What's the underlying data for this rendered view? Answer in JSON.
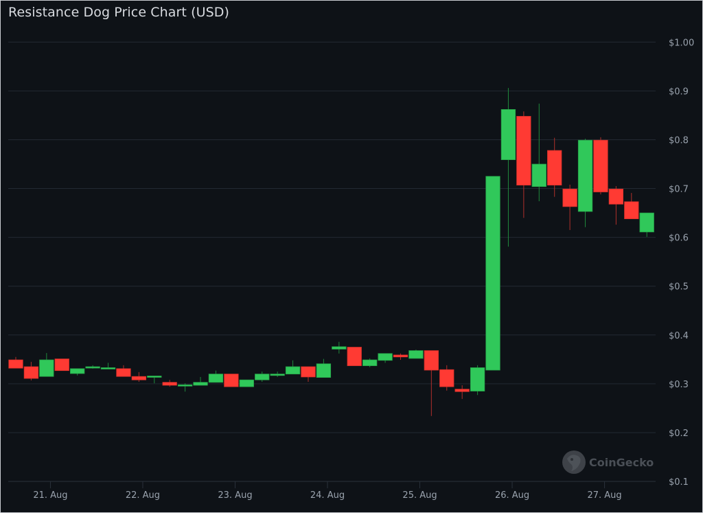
{
  "header": {
    "title": "Resistance Dog Price Chart (USD)"
  },
  "watermark": {
    "text": "CoinGecko"
  },
  "colors": {
    "background": "#0e1217",
    "grid": "#232a33",
    "up": "#30c85a",
    "down": "#ff3a33",
    "axis_text": "#9aa3ae",
    "title": "#d8dbe0"
  },
  "chart_data": {
    "type": "candlestick",
    "title": "Resistance Dog Price Chart (USD)",
    "xlabel": "",
    "ylabel": "",
    "ylim": [
      0.1,
      1.0
    ],
    "grid": true,
    "legend": "none",
    "y_ticks": [
      {
        "value": 1.0,
        "label": "$1.00"
      },
      {
        "value": 0.9,
        "label": "$0.9"
      },
      {
        "value": 0.8,
        "label": "$0.8"
      },
      {
        "value": 0.7,
        "label": "$0.7"
      },
      {
        "value": 0.6,
        "label": "$0.6"
      },
      {
        "value": 0.5,
        "label": "$0.5"
      },
      {
        "value": 0.4,
        "label": "$0.4"
      },
      {
        "value": 0.3,
        "label": "$0.3"
      },
      {
        "value": 0.2,
        "label": "$0.2"
      },
      {
        "value": 0.1,
        "label": "$0.1"
      }
    ],
    "x_ticks": [
      {
        "label": "21. Aug",
        "pos": 2.25
      },
      {
        "label": "22. Aug",
        "pos": 8.25
      },
      {
        "label": "23. Aug",
        "pos": 14.25
      },
      {
        "label": "24. Aug",
        "pos": 20.25
      },
      {
        "label": "25. Aug",
        "pos": 26.25
      },
      {
        "label": "26. Aug",
        "pos": 32.25
      },
      {
        "label": "27. Aug",
        "pos": 38.25
      }
    ],
    "candle_interval": "4h",
    "candles": [
      {
        "o": 0.349,
        "h": 0.355,
        "l": 0.332,
        "c": 0.332
      },
      {
        "o": 0.335,
        "h": 0.345,
        "l": 0.307,
        "c": 0.311
      },
      {
        "o": 0.315,
        "h": 0.363,
        "l": 0.315,
        "c": 0.349
      },
      {
        "o": 0.351,
        "h": 0.351,
        "l": 0.327,
        "c": 0.327
      },
      {
        "o": 0.321,
        "h": 0.331,
        "l": 0.317,
        "c": 0.331
      },
      {
        "o": 0.333,
        "h": 0.338,
        "l": 0.331,
        "c": 0.335
      },
      {
        "o": 0.331,
        "h": 0.343,
        "l": 0.331,
        "c": 0.333
      },
      {
        "o": 0.331,
        "h": 0.338,
        "l": 0.315,
        "c": 0.315
      },
      {
        "o": 0.315,
        "h": 0.324,
        "l": 0.304,
        "c": 0.308
      },
      {
        "o": 0.314,
        "h": 0.316,
        "l": 0.301,
        "c": 0.316
      },
      {
        "o": 0.303,
        "h": 0.308,
        "l": 0.294,
        "c": 0.297
      },
      {
        "o": 0.296,
        "h": 0.301,
        "l": 0.284,
        "c": 0.298
      },
      {
        "o": 0.297,
        "h": 0.314,
        "l": 0.297,
        "c": 0.303
      },
      {
        "o": 0.303,
        "h": 0.327,
        "l": 0.303,
        "c": 0.32
      },
      {
        "o": 0.32,
        "h": 0.32,
        "l": 0.294,
        "c": 0.294
      },
      {
        "o": 0.294,
        "h": 0.308,
        "l": 0.294,
        "c": 0.308
      },
      {
        "o": 0.308,
        "h": 0.325,
        "l": 0.304,
        "c": 0.32
      },
      {
        "o": 0.317,
        "h": 0.325,
        "l": 0.314,
        "c": 0.32
      },
      {
        "o": 0.32,
        "h": 0.348,
        "l": 0.32,
        "c": 0.335
      },
      {
        "o": 0.335,
        "h": 0.335,
        "l": 0.304,
        "c": 0.314
      },
      {
        "o": 0.313,
        "h": 0.351,
        "l": 0.313,
        "c": 0.341
      },
      {
        "o": 0.371,
        "h": 0.386,
        "l": 0.362,
        "c": 0.376
      },
      {
        "o": 0.375,
        "h": 0.375,
        "l": 0.337,
        "c": 0.337
      },
      {
        "o": 0.337,
        "h": 0.352,
        "l": 0.334,
        "c": 0.349
      },
      {
        "o": 0.348,
        "h": 0.362,
        "l": 0.343,
        "c": 0.362
      },
      {
        "o": 0.359,
        "h": 0.362,
        "l": 0.349,
        "c": 0.355
      },
      {
        "o": 0.352,
        "h": 0.37,
        "l": 0.352,
        "c": 0.368
      },
      {
        "o": 0.368,
        "h": 0.368,
        "l": 0.234,
        "c": 0.328
      },
      {
        "o": 0.329,
        "h": 0.338,
        "l": 0.286,
        "c": 0.294
      },
      {
        "o": 0.289,
        "h": 0.297,
        "l": 0.269,
        "c": 0.284
      },
      {
        "o": 0.285,
        "h": 0.338,
        "l": 0.277,
        "c": 0.333
      },
      {
        "o": 0.328,
        "h": 0.725,
        "l": 0.328,
        "c": 0.725
      },
      {
        "o": 0.759,
        "h": 0.906,
        "l": 0.581,
        "c": 0.862
      },
      {
        "o": 0.848,
        "h": 0.858,
        "l": 0.64,
        "c": 0.707
      },
      {
        "o": 0.704,
        "h": 0.874,
        "l": 0.674,
        "c": 0.75
      },
      {
        "o": 0.778,
        "h": 0.804,
        "l": 0.683,
        "c": 0.707
      },
      {
        "o": 0.699,
        "h": 0.708,
        "l": 0.615,
        "c": 0.663
      },
      {
        "o": 0.653,
        "h": 0.802,
        "l": 0.621,
        "c": 0.799
      },
      {
        "o": 0.799,
        "h": 0.805,
        "l": 0.688,
        "c": 0.693
      },
      {
        "o": 0.699,
        "h": 0.705,
        "l": 0.626,
        "c": 0.668
      },
      {
        "o": 0.673,
        "h": 0.691,
        "l": 0.638,
        "c": 0.638
      },
      {
        "o": 0.611,
        "h": 0.65,
        "l": 0.601,
        "c": 0.65
      }
    ]
  }
}
